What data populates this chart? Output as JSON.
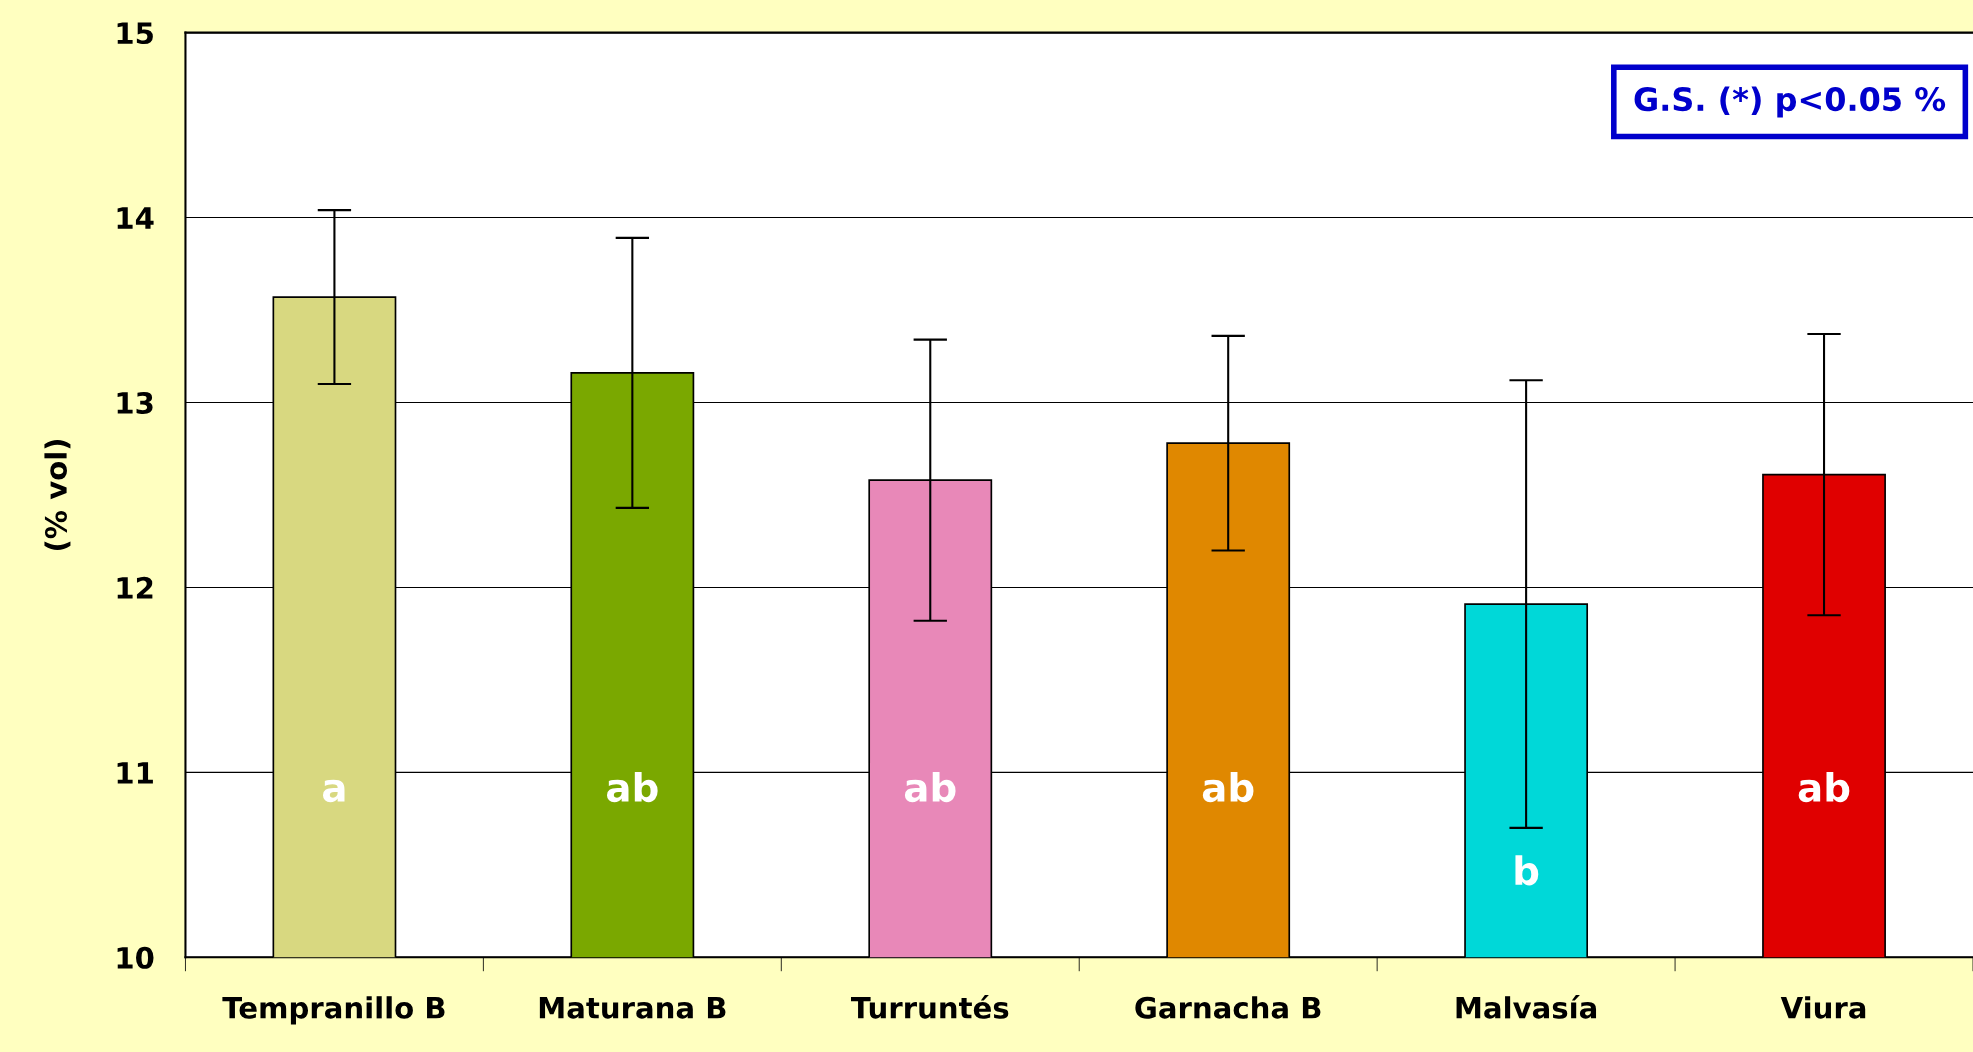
{
  "chart_data": {
    "type": "bar",
    "ylabel": "(% vol)",
    "categories": [
      "Tempranillo B",
      "Maturana B",
      "Turruntés",
      "Garnacha B",
      "Malvasía",
      "Viura"
    ],
    "values": [
      13.57,
      13.16,
      12.58,
      12.78,
      11.91,
      12.61
    ],
    "errors": [
      0.47,
      0.73,
      0.76,
      0.58,
      1.21,
      0.76
    ],
    "colors": [
      "#d8d880",
      "#7aa800",
      "#e888b8",
      "#e08800",
      "#00d8d8",
      "#e00000"
    ],
    "ylim": [
      10,
      15
    ],
    "yticks": [
      10,
      11,
      12,
      13,
      14,
      15
    ],
    "grid": "y",
    "value_labels": [
      "a",
      "ab",
      "ab",
      "ab",
      "b",
      "ab"
    ],
    "annotations": [
      "G.S. (*) p<0.05 %"
    ]
  }
}
